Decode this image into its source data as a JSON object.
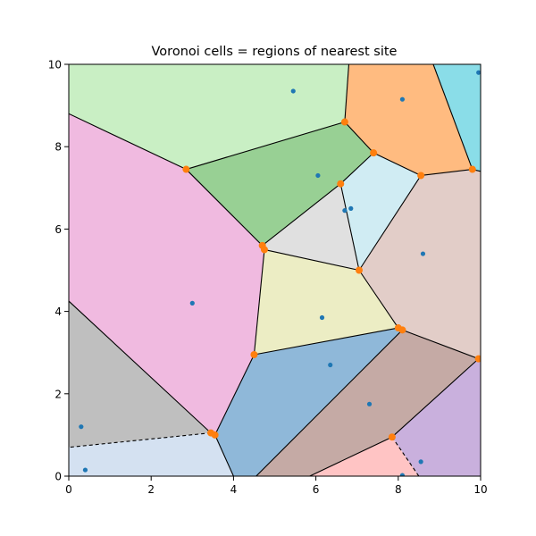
{
  "chart_data": {
    "type": "scatter",
    "title": "Voronoi cells = regions of nearest site",
    "xlabel": "",
    "ylabel": "",
    "xlim": [
      0,
      10
    ],
    "ylim": [
      0,
      10
    ],
    "x_ticks": [
      0,
      2,
      4,
      6,
      8,
      10
    ],
    "y_ticks": [
      0,
      2,
      4,
      6,
      8,
      10
    ],
    "x_tick_labels": [
      "0",
      "2",
      "4",
      "6",
      "8",
      "10"
    ],
    "y_tick_labels": [
      "0",
      "2",
      "4",
      "6",
      "8",
      "10"
    ],
    "grid": false,
    "site_color": "#1f77b4",
    "vertex_color": "#ff7f0e",
    "edge_color": "#000000",
    "sites": [
      {
        "x": 5.45,
        "y": 9.35
      },
      {
        "x": 8.1,
        "y": 9.15
      },
      {
        "x": 9.95,
        "y": 9.8
      },
      {
        "x": 6.05,
        "y": 7.3
      },
      {
        "x": 6.7,
        "y": 6.45
      },
      {
        "x": 6.85,
        "y": 6.5
      },
      {
        "x": 8.6,
        "y": 5.4
      },
      {
        "x": 3.0,
        "y": 4.2
      },
      {
        "x": 6.15,
        "y": 3.85
      },
      {
        "x": 6.35,
        "y": 2.7
      },
      {
        "x": 7.3,
        "y": 1.75
      },
      {
        "x": 0.3,
        "y": 1.2
      },
      {
        "x": 0.4,
        "y": 0.15
      },
      {
        "x": 8.55,
        "y": 0.35
      },
      {
        "x": 8.1,
        "y": 0.02
      }
    ],
    "vertices": [
      {
        "x": 2.85,
        "y": 7.45
      },
      {
        "x": 6.7,
        "y": 8.6
      },
      {
        "x": 7.4,
        "y": 7.85
      },
      {
        "x": 6.6,
        "y": 7.1
      },
      {
        "x": 8.55,
        "y": 7.3
      },
      {
        "x": 9.8,
        "y": 7.45
      },
      {
        "x": 4.7,
        "y": 5.6
      },
      {
        "x": 4.75,
        "y": 5.5
      },
      {
        "x": 7.05,
        "y": 5.0
      },
      {
        "x": 8.0,
        "y": 3.6
      },
      {
        "x": 8.1,
        "y": 3.55
      },
      {
        "x": 4.5,
        "y": 2.95
      },
      {
        "x": 3.45,
        "y": 1.05
      },
      {
        "x": 3.55,
        "y": 1.0
      },
      {
        "x": 9.95,
        "y": 2.85
      },
      {
        "x": 7.85,
        "y": 0.95
      }
    ],
    "cells": [
      {
        "color": "#c9efc4",
        "points": [
          [
            0,
            10
          ],
          [
            6.8,
            10
          ],
          [
            6.7,
            8.6
          ],
          [
            2.85,
            7.45
          ],
          [
            0,
            8.8
          ]
        ]
      },
      {
        "color": "#ffbb80",
        "points": [
          [
            6.8,
            10
          ],
          [
            8.85,
            10
          ],
          [
            9.8,
            7.45
          ],
          [
            8.55,
            7.3
          ],
          [
            7.4,
            7.85
          ],
          [
            6.7,
            8.6
          ]
        ]
      },
      {
        "color": "#8adde8",
        "points": [
          [
            8.85,
            10
          ],
          [
            10,
            10
          ],
          [
            10,
            7.4
          ],
          [
            9.8,
            7.45
          ]
        ]
      },
      {
        "color": "#98d094",
        "points": [
          [
            2.85,
            7.45
          ],
          [
            6.7,
            8.6
          ],
          [
            7.4,
            7.85
          ],
          [
            6.6,
            7.1
          ],
          [
            4.7,
            5.6
          ]
        ]
      },
      {
        "color": "#d0ecf3",
        "points": [
          [
            7.4,
            7.85
          ],
          [
            8.55,
            7.3
          ],
          [
            7.05,
            5.0
          ],
          [
            6.6,
            7.1
          ]
        ]
      },
      {
        "color": "#e0e0e0",
        "points": [
          [
            6.6,
            7.1
          ],
          [
            7.05,
            5.0
          ],
          [
            4.75,
            5.5
          ],
          [
            4.7,
            5.6
          ]
        ]
      },
      {
        "color": "#e2cdc8",
        "points": [
          [
            8.55,
            7.3
          ],
          [
            9.8,
            7.45
          ],
          [
            10,
            7.4
          ],
          [
            10,
            2.85
          ],
          [
            9.95,
            2.85
          ],
          [
            8.1,
            3.55
          ],
          [
            8.0,
            3.6
          ],
          [
            7.05,
            5.0
          ]
        ]
      },
      {
        "color": "#f0bae0",
        "points": [
          [
            0,
            8.8
          ],
          [
            2.85,
            7.45
          ],
          [
            4.7,
            5.6
          ],
          [
            4.75,
            5.5
          ],
          [
            4.5,
            2.95
          ],
          [
            3.55,
            1.0
          ],
          [
            3.45,
            1.05
          ],
          [
            0,
            4.25
          ]
        ]
      },
      {
        "color": "#ecedc4",
        "points": [
          [
            4.75,
            5.5
          ],
          [
            7.05,
            5.0
          ],
          [
            8.0,
            3.6
          ],
          [
            4.5,
            2.95
          ]
        ]
      },
      {
        "color": "#bfbfbf",
        "points": [
          [
            0,
            4.25
          ],
          [
            3.45,
            1.05
          ],
          [
            0,
            0.7
          ]
        ]
      },
      {
        "color": "#8fb8d9",
        "points": [
          [
            4.5,
            2.95
          ],
          [
            8.0,
            3.6
          ],
          [
            8.1,
            3.55
          ],
          [
            4.55,
            0
          ],
          [
            4.0,
            0
          ],
          [
            3.55,
            1.0
          ]
        ]
      },
      {
        "color": "#c5aaa5",
        "points": [
          [
            8.1,
            3.55
          ],
          [
            9.95,
            2.85
          ],
          [
            7.85,
            0.95
          ],
          [
            5.85,
            0
          ],
          [
            4.55,
            0
          ]
        ]
      },
      {
        "color": "#d4e1f1",
        "points": [
          [
            0,
            0.7
          ],
          [
            3.45,
            1.05
          ],
          [
            3.55,
            1.0
          ],
          [
            4.0,
            0
          ],
          [
            0,
            0
          ]
        ]
      },
      {
        "color": "#c9b0dd",
        "points": [
          [
            9.95,
            2.85
          ],
          [
            10,
            2.85
          ],
          [
            10,
            0
          ],
          [
            8.5,
            0
          ],
          [
            7.85,
            0.95
          ]
        ]
      },
      {
        "color": "#ffc4c4",
        "points": [
          [
            5.85,
            0
          ],
          [
            7.85,
            0.95
          ],
          [
            8.5,
            0
          ]
        ]
      }
    ],
    "edges": [
      {
        "from": [
          2.85,
          7.45
        ],
        "to": [
          6.7,
          8.6
        ],
        "style": "solid"
      },
      {
        "from": [
          6.7,
          8.6
        ],
        "to": [
          6.8,
          10
        ],
        "style": "solid"
      },
      {
        "from": [
          6.7,
          8.6
        ],
        "to": [
          7.4,
          7.85
        ],
        "style": "solid"
      },
      {
        "from": [
          7.4,
          7.85
        ],
        "to": [
          8.55,
          7.3
        ],
        "style": "solid"
      },
      {
        "from": [
          8.55,
          7.3
        ],
        "to": [
          9.8,
          7.45
        ],
        "style": "solid"
      },
      {
        "from": [
          9.8,
          7.45
        ],
        "to": [
          8.85,
          10
        ],
        "style": "solid"
      },
      {
        "from": [
          9.8,
          7.45
        ],
        "to": [
          10,
          7.4
        ],
        "style": "solid"
      },
      {
        "from": [
          0,
          8.8
        ],
        "to": [
          2.85,
          7.45
        ],
        "style": "solid"
      },
      {
        "from": [
          2.85,
          7.45
        ],
        "to": [
          4.7,
          5.6
        ],
        "style": "solid"
      },
      {
        "from": [
          4.7,
          5.6
        ],
        "to": [
          6.6,
          7.1
        ],
        "style": "solid"
      },
      {
        "from": [
          6.6,
          7.1
        ],
        "to": [
          7.4,
          7.85
        ],
        "style": "solid"
      },
      {
        "from": [
          6.6,
          7.1
        ],
        "to": [
          7.05,
          5.0
        ],
        "style": "solid"
      },
      {
        "from": [
          8.55,
          7.3
        ],
        "to": [
          7.05,
          5.0
        ],
        "style": "solid"
      },
      {
        "from": [
          4.75,
          5.5
        ],
        "to": [
          7.05,
          5.0
        ],
        "style": "solid"
      },
      {
        "from": [
          4.7,
          5.6
        ],
        "to": [
          4.75,
          5.5
        ],
        "style": "solid"
      },
      {
        "from": [
          4.75,
          5.5
        ],
        "to": [
          4.5,
          2.95
        ],
        "style": "solid"
      },
      {
        "from": [
          7.05,
          5.0
        ],
        "to": [
          8.0,
          3.6
        ],
        "style": "solid"
      },
      {
        "from": [
          4.5,
          2.95
        ],
        "to": [
          8.0,
          3.6
        ],
        "style": "solid"
      },
      {
        "from": [
          8.0,
          3.6
        ],
        "to": [
          8.1,
          3.55
        ],
        "style": "solid"
      },
      {
        "from": [
          8.1,
          3.55
        ],
        "to": [
          9.95,
          2.85
        ],
        "style": "solid"
      },
      {
        "from": [
          9.95,
          2.85
        ],
        "to": [
          10,
          2.85
        ],
        "style": "solid"
      },
      {
        "from": [
          8.1,
          3.55
        ],
        "to": [
          4.55,
          0
        ],
        "style": "solid"
      },
      {
        "from": [
          9.95,
          2.85
        ],
        "to": [
          7.85,
          0.95
        ],
        "style": "solid"
      },
      {
        "from": [
          7.85,
          0.95
        ],
        "to": [
          5.85,
          0
        ],
        "style": "solid"
      },
      {
        "from": [
          7.85,
          0.95
        ],
        "to": [
          8.5,
          0
        ],
        "style": "dashed"
      },
      {
        "from": [
          4.5,
          2.95
        ],
        "to": [
          3.55,
          1.0
        ],
        "style": "solid"
      },
      {
        "from": [
          3.55,
          1.0
        ],
        "to": [
          4.0,
          0
        ],
        "style": "solid"
      },
      {
        "from": [
          3.45,
          1.05
        ],
        "to": [
          3.55,
          1.0
        ],
        "style": "solid"
      },
      {
        "from": [
          0,
          4.25
        ],
        "to": [
          3.45,
          1.05
        ],
        "style": "solid"
      },
      {
        "from": [
          3.45,
          1.05
        ],
        "to": [
          0,
          0.7
        ],
        "style": "dashed"
      }
    ]
  }
}
